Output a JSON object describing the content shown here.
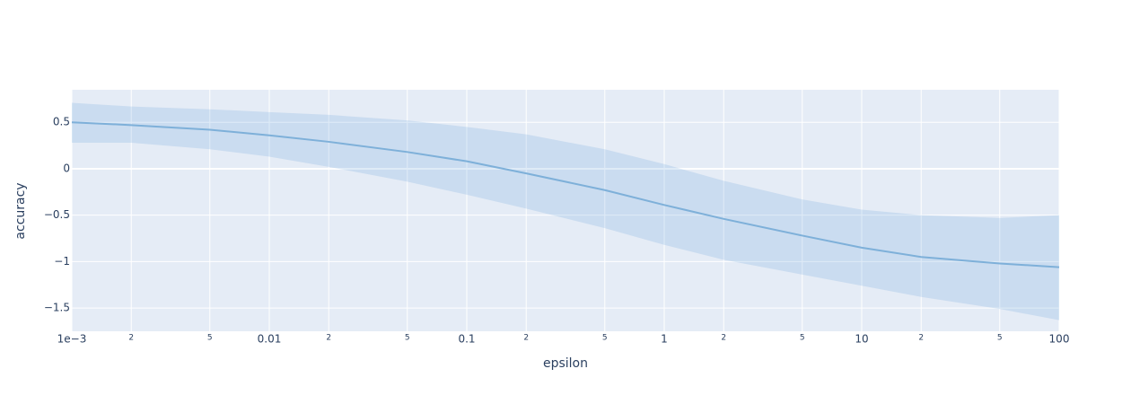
{
  "chart_data": {
    "type": "line",
    "x_label": "epsilon",
    "y_label": "accuracy",
    "log_x": true,
    "grid": true,
    "line_color": "#7eb0d9",
    "band_color": "rgba(110,165,220,0.22)",
    "plot_bg": "#e5ecf6",
    "x": [
      0.001,
      0.002,
      0.005,
      0.01,
      0.02,
      0.05,
      0.1,
      0.2,
      0.5,
      1,
      2,
      5,
      10,
      20,
      50,
      100
    ],
    "values": [
      0.5,
      0.47,
      0.42,
      0.36,
      0.29,
      0.18,
      0.08,
      -0.05,
      -0.23,
      -0.39,
      -0.54,
      -0.72,
      -0.85,
      -0.95,
      -1.02,
      -1.06
    ],
    "upper": [
      0.71,
      0.67,
      0.64,
      0.61,
      0.58,
      0.52,
      0.45,
      0.37,
      0.21,
      0.05,
      -0.13,
      -0.33,
      -0.44,
      -0.5,
      -0.53,
      -0.5
    ],
    "lower": [
      0.28,
      0.28,
      0.21,
      0.13,
      0.02,
      -0.14,
      -0.28,
      -0.43,
      -0.64,
      -0.82,
      -0.98,
      -1.14,
      -1.26,
      -1.38,
      -1.51,
      -1.63
    ],
    "xlim": [
      0.001,
      100
    ],
    "ylim": [
      -1.75,
      0.85
    ],
    "xticks": [
      {
        "value": 0.001,
        "label": "1e−3"
      },
      {
        "value": 0.002,
        "label": "2"
      },
      {
        "value": 0.005,
        "label": "5"
      },
      0.01,
      {
        "value": 0.02,
        "label": "2"
      },
      {
        "value": 0.05,
        "label": "5"
      },
      0.1,
      {
        "value": 0.2,
        "label": "2"
      },
      {
        "value": 0.5,
        "label": "5"
      },
      1,
      {
        "value": 2,
        "label": "2"
      },
      {
        "value": 5,
        "label": "5"
      },
      10,
      {
        "value": 20,
        "label": "2"
      },
      {
        "value": 50,
        "label": "5"
      },
      100
    ],
    "yticks": [
      {
        "value": -1.5,
        "label": "−1.5"
      },
      {
        "value": -1,
        "label": "−1"
      },
      {
        "value": -0.5,
        "label": "−0.5"
      },
      0,
      0.5
    ]
  }
}
